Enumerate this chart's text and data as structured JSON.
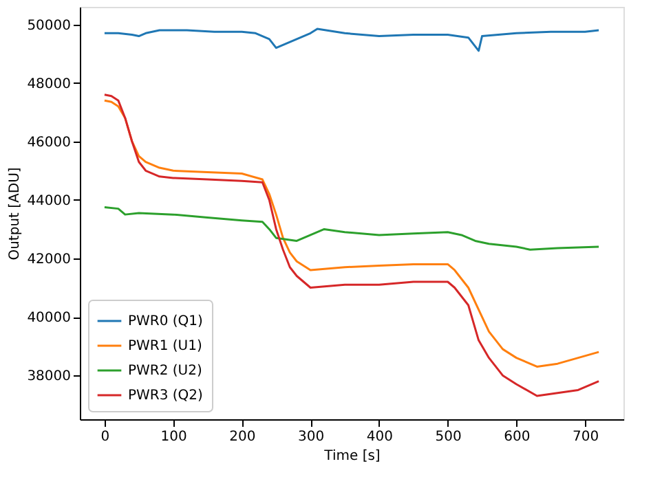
{
  "chart_data": {
    "type": "line",
    "xlabel": "Time [s]",
    "ylabel": "Output [ADU]",
    "xlim": [
      -36,
      756
    ],
    "ylim": [
      36500,
      50600
    ],
    "xticks": [
      0,
      100,
      200,
      300,
      400,
      500,
      600,
      700
    ],
    "yticks": [
      38000,
      40000,
      42000,
      44000,
      46000,
      48000,
      50000
    ],
    "grid": false,
    "legend": "bottom left",
    "marker": "none",
    "line_style": "solid",
    "series": [
      {
        "name": "PWR0 (Q1)",
        "color": "#1f77b4",
        "x": [
          0,
          20,
          40,
          50,
          60,
          80,
          120,
          160,
          200,
          220,
          240,
          250,
          260,
          280,
          300,
          310,
          350,
          400,
          450,
          500,
          530,
          545,
          550,
          600,
          650,
          700,
          720
        ],
        "values": [
          49700,
          49700,
          49650,
          49600,
          49700,
          49800,
          49800,
          49750,
          49750,
          49700,
          49500,
          49200,
          49300,
          49500,
          49700,
          49850,
          49700,
          49600,
          49650,
          49650,
          49550,
          49100,
          49600,
          49700,
          49750,
          49750,
          49800
        ]
      },
      {
        "name": "PWR1 (U1)",
        "color": "#ff7f0e",
        "x": [
          0,
          10,
          20,
          30,
          40,
          50,
          60,
          80,
          100,
          150,
          200,
          230,
          240,
          250,
          260,
          270,
          280,
          300,
          350,
          400,
          450,
          500,
          510,
          530,
          550,
          560,
          580,
          600,
          630,
          660,
          690,
          720
        ],
        "values": [
          47400,
          47350,
          47200,
          46800,
          46000,
          45500,
          45300,
          45100,
          45000,
          44950,
          44900,
          44700,
          44200,
          43500,
          42700,
          42200,
          41900,
          41600,
          41700,
          41750,
          41800,
          41800,
          41600,
          41000,
          40000,
          39500,
          38900,
          38600,
          38300,
          38400,
          38600,
          38800
        ]
      },
      {
        "name": "PWR2 (U2)",
        "color": "#2ca02c",
        "x": [
          0,
          20,
          30,
          50,
          100,
          150,
          200,
          230,
          240,
          250,
          280,
          300,
          320,
          350,
          400,
          450,
          500,
          520,
          540,
          560,
          600,
          620,
          660,
          720
        ],
        "values": [
          43750,
          43700,
          43500,
          43550,
          43500,
          43400,
          43300,
          43250,
          43000,
          42700,
          42600,
          42800,
          43000,
          42900,
          42800,
          42850,
          42900,
          42800,
          42600,
          42500,
          42400,
          42300,
          42350,
          42400
        ]
      },
      {
        "name": "PWR3 (Q2)",
        "color": "#d62728",
        "x": [
          0,
          10,
          20,
          30,
          40,
          50,
          60,
          80,
          100,
          150,
          200,
          230,
          240,
          250,
          260,
          270,
          280,
          300,
          350,
          400,
          450,
          500,
          510,
          530,
          545,
          560,
          580,
          600,
          630,
          660,
          690,
          720
        ],
        "values": [
          47600,
          47550,
          47400,
          46800,
          46000,
          45300,
          45000,
          44800,
          44750,
          44700,
          44650,
          44600,
          44000,
          43000,
          42300,
          41700,
          41400,
          41000,
          41100,
          41100,
          41200,
          41200,
          41000,
          40400,
          39200,
          38600,
          38000,
          37700,
          37300,
          37400,
          37500,
          37800
        ]
      }
    ]
  }
}
